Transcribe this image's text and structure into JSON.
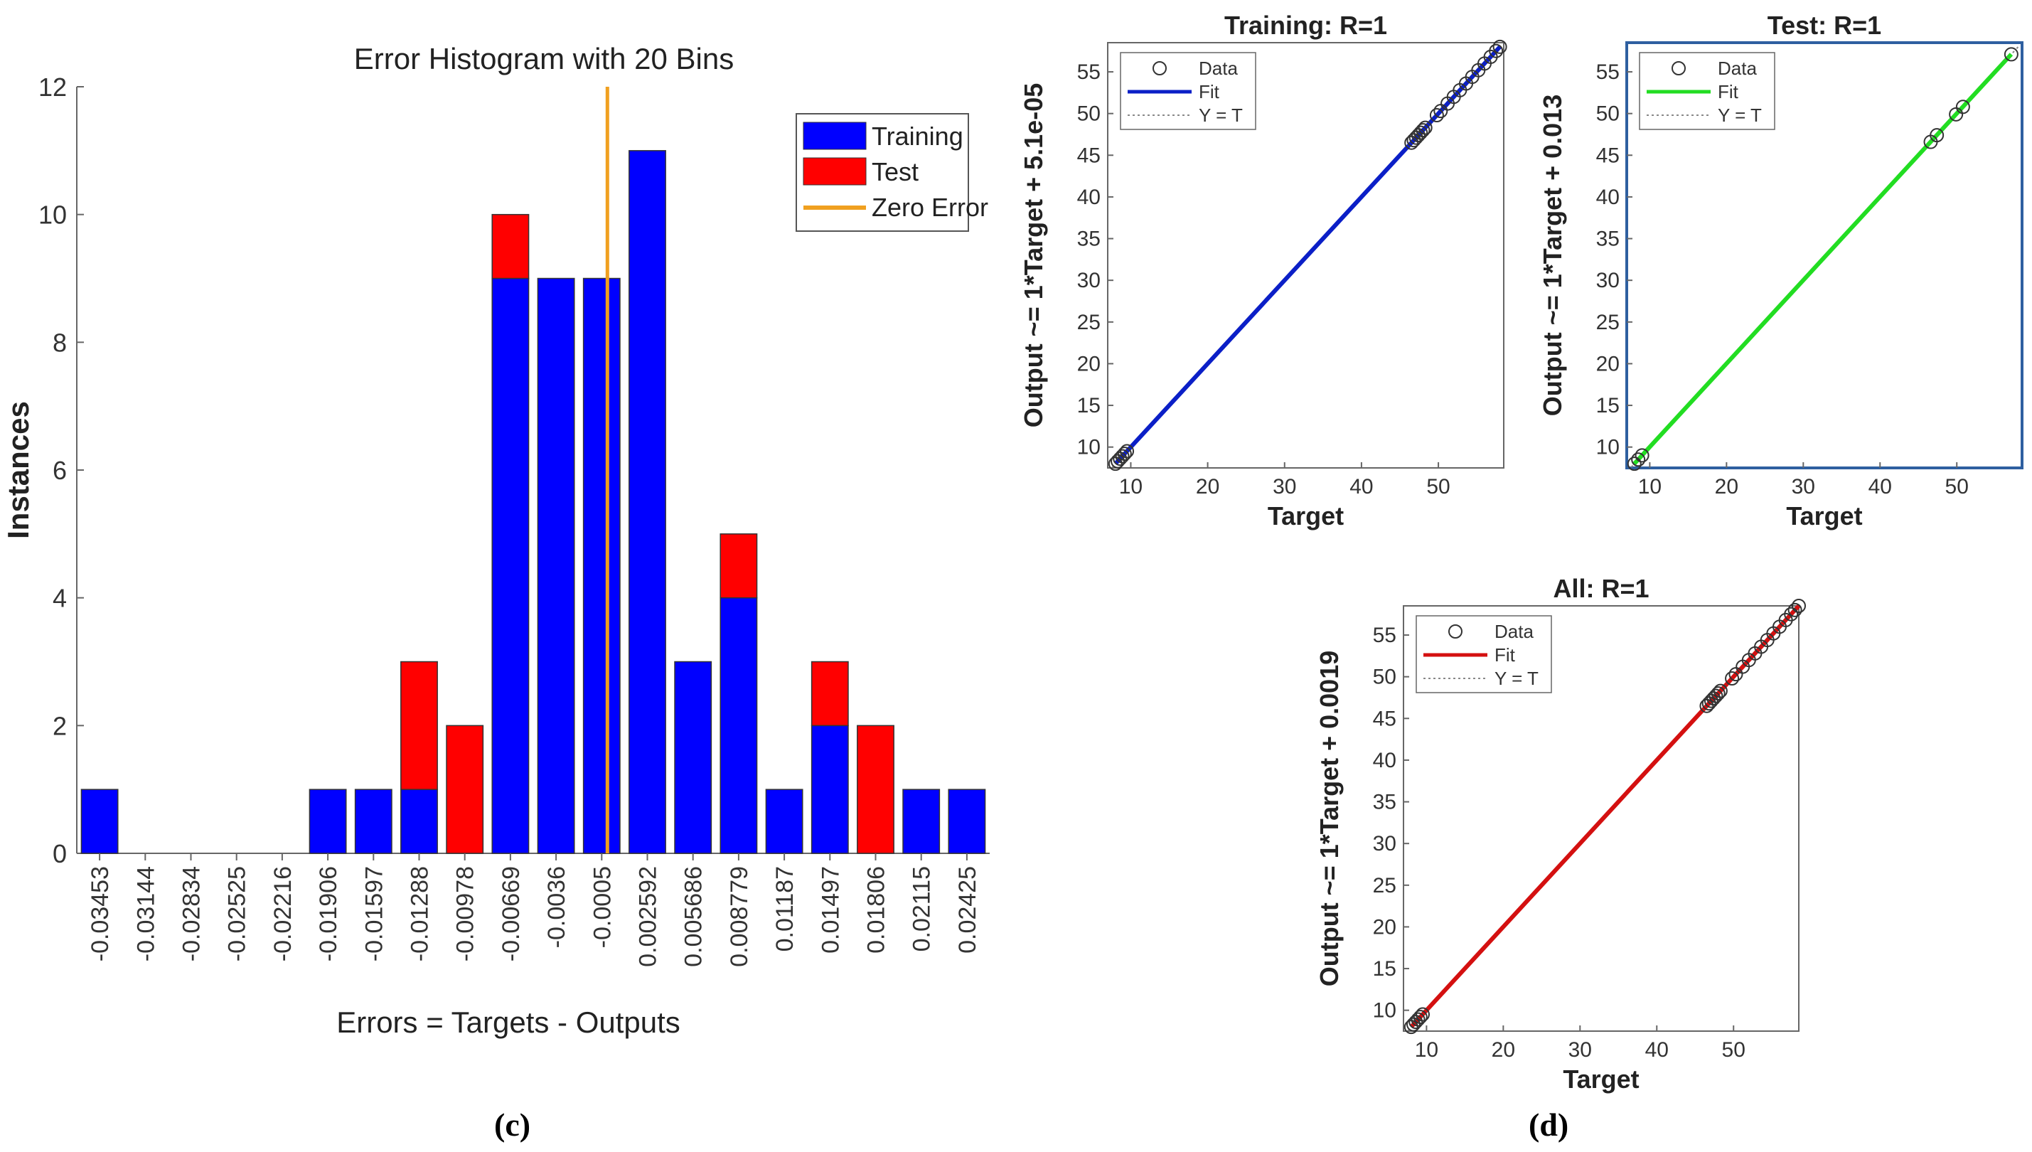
{
  "figure_labels": {
    "c": "(c)",
    "d": "(d)"
  },
  "colors": {
    "training": "#0000ff",
    "test": "#ff0000",
    "zero_error": "#f0a020",
    "fit_training": "#0b1fc7",
    "fit_test": "#22dd22",
    "fit_all": "#d41010",
    "test_frame": "#2e5fa0"
  },
  "chart_data": [
    {
      "id": "histogram",
      "type": "bar",
      "stacked": true,
      "title": "Error Histogram with 20 Bins",
      "xlabel": "Errors = Targets - Outputs",
      "ylabel": "Instances",
      "ylim": [
        0,
        12
      ],
      "yticks": [
        0,
        2,
        4,
        6,
        8,
        10,
        12
      ],
      "zero_error_bin": "-0.0005",
      "legend": {
        "position": "top-right",
        "entries": [
          "Training",
          "Test",
          "Zero Error"
        ]
      },
      "categories": [
        "-0.03453",
        "-0.03144",
        "-0.02834",
        "-0.02525",
        "-0.02216",
        "-0.01906",
        "-0.01597",
        "-0.01288",
        "-0.00978",
        "-0.00669",
        "-0.0036",
        "-0.0005",
        "0.002592",
        "0.005686",
        "0.008779",
        "0.01187",
        "0.01497",
        "0.01806",
        "0.02115",
        "0.02425"
      ],
      "series": [
        {
          "name": "Training",
          "values": [
            1,
            0,
            0,
            0,
            0,
            1,
            1,
            1,
            0,
            9,
            9,
            9,
            11,
            3,
            4,
            1,
            2,
            0,
            1,
            1
          ]
        },
        {
          "name": "Test",
          "values": [
            0,
            0,
            0,
            0,
            0,
            0,
            0,
            2,
            2,
            1,
            0,
            0,
            0,
            0,
            1,
            0,
            1,
            2,
            0,
            0
          ]
        }
      ]
    },
    {
      "id": "training",
      "type": "scatter",
      "title": "Training: R=1",
      "xlabel": "Target",
      "ylabel": "Output ~= 1*Target + 5.1e-05",
      "xlim": [
        7,
        58.5
      ],
      "ylim": [
        7.5,
        58.5
      ],
      "xticks": [
        10,
        20,
        30,
        40,
        50
      ],
      "yticks": [
        10,
        15,
        20,
        25,
        30,
        35,
        40,
        45,
        50,
        55
      ],
      "legend": {
        "position": "top-left",
        "entries": [
          "Data",
          "Fit",
          "Y = T"
        ]
      },
      "fit": {
        "slope": 1,
        "intercept": 5.1e-05
      },
      "points": [
        8.0,
        8.3,
        8.6,
        8.9,
        9.2,
        9.5,
        46.5,
        46.8,
        47.1,
        47.4,
        47.7,
        48.0,
        48.3,
        49.8,
        50.3,
        51.2,
        52.0,
        52.8,
        53.6,
        54.4,
        55.2,
        56.0,
        56.8,
        57.5,
        58.0
      ]
    },
    {
      "id": "test",
      "type": "scatter",
      "title": "Test: R=1",
      "xlabel": "Target",
      "ylabel": "Output ~= 1*Target + 0.013",
      "xlim": [
        7,
        58.5
      ],
      "ylim": [
        7.5,
        58.5
      ],
      "xticks": [
        10,
        20,
        30,
        40,
        50
      ],
      "yticks": [
        10,
        15,
        20,
        25,
        30,
        35,
        40,
        45,
        50,
        55
      ],
      "legend": {
        "position": "top-left",
        "entries": [
          "Data",
          "Fit",
          "Y = T"
        ]
      },
      "fit": {
        "slope": 1,
        "intercept": 0.013
      },
      "points": [
        8.0,
        8.5,
        9.0,
        46.6,
        47.4,
        49.9,
        50.8,
        57.1
      ]
    },
    {
      "id": "all",
      "type": "scatter",
      "title": "All: R=1",
      "xlabel": "Target",
      "ylabel": "Output ~= 1*Target + 0.0019",
      "xlim": [
        7,
        58.5
      ],
      "ylim": [
        7.5,
        58.5
      ],
      "xticks": [
        10,
        20,
        30,
        40,
        50
      ],
      "yticks": [
        10,
        15,
        20,
        25,
        30,
        35,
        40,
        45,
        50,
        55
      ],
      "legend": {
        "position": "top-left",
        "entries": [
          "Data",
          "Fit",
          "Y = T"
        ]
      },
      "fit": {
        "slope": 1,
        "intercept": 0.0019
      },
      "points": [
        8.0,
        8.3,
        8.6,
        8.9,
        9.2,
        9.5,
        46.5,
        46.8,
        47.1,
        47.4,
        47.7,
        48.0,
        48.3,
        49.8,
        50.3,
        51.2,
        52.0,
        52.8,
        53.6,
        54.4,
        55.2,
        56.0,
        56.8,
        57.5,
        58.0,
        58.5
      ]
    }
  ]
}
